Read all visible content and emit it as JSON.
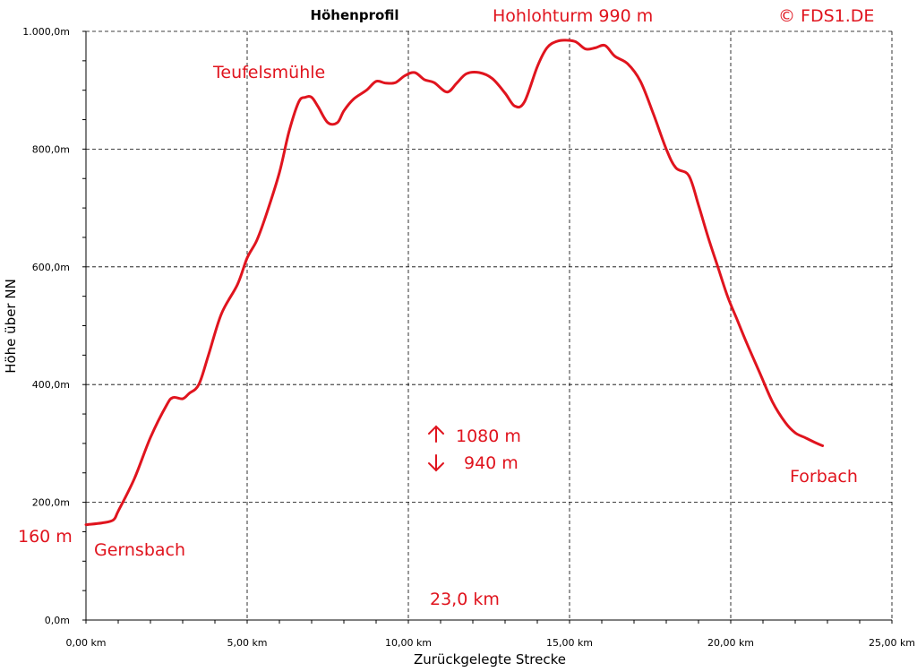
{
  "chart_data": {
    "type": "line",
    "title": "Höhenprofil",
    "xlabel": "Zurückgelegte Strecke",
    "ylabel": "Höhe über NN",
    "xlim": [
      0,
      25
    ],
    "ylim": [
      0,
      1000
    ],
    "x_ticks": [
      0,
      5,
      10,
      15,
      20,
      25
    ],
    "x_tick_labels": [
      "0,00 km",
      "5,00 km",
      "10,00 km",
      "15,00 km",
      "20,00 km",
      "25,00 km"
    ],
    "y_ticks": [
      0,
      200,
      400,
      600,
      800,
      1000
    ],
    "y_tick_labels": [
      "0,0m",
      "200,0m",
      "400,0m",
      "600,0m",
      "800,0m",
      "1.000,0m"
    ],
    "grid": true,
    "line_color": "#e0141e",
    "annotations": {
      "peak": "Hohlohturm  990 m",
      "copyright": "© FDS1.DE",
      "teufelsmuehle": "Teufelsmühle",
      "start_height": "160 m",
      "start_place": "Gernsbach",
      "end_place": "Forbach",
      "ascent": "1080 m",
      "descent": "940 m",
      "distance": "23,0 km"
    },
    "series": [
      {
        "x": [
          0,
          0.5,
          0.85,
          1.0,
          1.5,
          2.0,
          2.5,
          2.7,
          3.0,
          3.2,
          3.5,
          3.8,
          4.2,
          4.7,
          5.0,
          5.3,
          5.6,
          6.0,
          6.3,
          6.6,
          6.8,
          7.0,
          7.2,
          7.5,
          7.8,
          8.0,
          8.3,
          8.7,
          9.0,
          9.3,
          9.6,
          9.9,
          10.2,
          10.5,
          10.8,
          11.2,
          11.5,
          11.8,
          12.2,
          12.6,
          13.0,
          13.3,
          13.6,
          14.0,
          14.3,
          14.6,
          14.9,
          15.2,
          15.5,
          15.8,
          16.1,
          16.4,
          16.8,
          17.2,
          17.6,
          18.0,
          18.3,
          18.7,
          19.0,
          19.3,
          19.6,
          19.9,
          20.2,
          20.5,
          20.9,
          21.3,
          21.7,
          22.0,
          22.3,
          22.6,
          22.85
        ],
        "y": [
          162,
          165,
          170,
          185,
          240,
          310,
          365,
          378,
          376,
          385,
          400,
          450,
          520,
          570,
          615,
          645,
          690,
          760,
          830,
          880,
          888,
          888,
          872,
          845,
          845,
          865,
          885,
          900,
          915,
          912,
          913,
          925,
          930,
          918,
          913,
          897,
          912,
          928,
          930,
          920,
          895,
          873,
          880,
          940,
          972,
          983,
          985,
          982,
          970,
          972,
          976,
          958,
          945,
          915,
          860,
          800,
          768,
          755,
          705,
          650,
          600,
          550,
          510,
          470,
          420,
          370,
          335,
          318,
          310,
          302,
          296
        ]
      }
    ]
  }
}
